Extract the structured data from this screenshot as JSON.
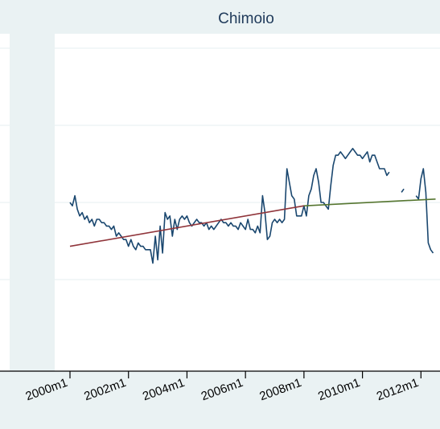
{
  "chart_data": {
    "type": "line",
    "title": "Chimoio",
    "xlabel": "",
    "ylabel": "",
    "x_ticks": [
      "2000m1",
      "2002m1",
      "2004m1",
      "2006m1",
      "2008m1",
      "2010m1",
      "2012m1"
    ],
    "xlim": [
      "2000m1",
      "2012m7"
    ],
    "ylim": [
      0,
      10
    ],
    "grid": true,
    "legend": "none",
    "colors": {
      "price": "#1a476f",
      "trend_pre": "#90353b",
      "trend_post": "#55752f",
      "background": "#eaf2f3",
      "plot_bg": "#ffffff",
      "grid": "#eaf2f3",
      "title": "#1f3a5a"
    },
    "series": [
      {
        "type": "line",
        "color": "#1a476f",
        "points": [
          [
            "2000m1",
            5.0
          ],
          [
            "2000m2",
            4.9
          ],
          [
            "2000m3",
            5.2
          ],
          [
            "2000m4",
            4.8
          ],
          [
            "2000m5",
            4.6
          ],
          [
            "2000m6",
            4.7
          ],
          [
            "2000m7",
            4.5
          ],
          [
            "2000m8",
            4.6
          ],
          [
            "2000m9",
            4.4
          ],
          [
            "2000m10",
            4.5
          ],
          [
            "2000m11",
            4.3
          ],
          [
            "2000m12",
            4.5
          ],
          [
            "2001m1",
            4.5
          ],
          [
            "2001m2",
            4.4
          ],
          [
            "2001m3",
            4.4
          ],
          [
            "2001m4",
            4.3
          ],
          [
            "2001m5",
            4.3
          ],
          [
            "2001m6",
            4.2
          ],
          [
            "2001m7",
            4.3
          ],
          [
            "2001m8",
            4.0
          ],
          [
            "2001m9",
            4.1
          ],
          [
            "2001m10",
            4.0
          ],
          [
            "2001m11",
            3.9
          ],
          [
            "2001m12",
            3.9
          ],
          [
            "2002m1",
            3.7
          ],
          [
            "2002m2",
            3.9
          ],
          [
            "2002m3",
            3.7
          ],
          [
            "2002m4",
            3.6
          ],
          [
            "2002m5",
            3.8
          ],
          [
            "2002m6",
            3.7
          ],
          [
            "2002m7",
            3.7
          ],
          [
            "2002m8",
            3.6
          ],
          [
            "2002m9",
            3.6
          ],
          [
            "2002m10",
            3.6
          ],
          [
            "2002m11",
            3.2
          ],
          [
            "2002m12",
            4.0
          ],
          [
            "2003m1",
            3.3
          ],
          [
            "2003m2",
            4.3
          ],
          [
            "2003m3",
            3.5
          ],
          [
            "2003m4",
            4.7
          ],
          [
            "2003m5",
            4.5
          ],
          [
            "2003m6",
            4.6
          ],
          [
            "2003m7",
            4.0
          ],
          [
            "2003m8",
            4.5
          ],
          [
            "2003m9",
            4.2
          ],
          [
            "2003m10",
            4.5
          ],
          [
            "2003m11",
            4.6
          ],
          [
            "2003m12",
            4.5
          ],
          [
            "2004m1",
            4.6
          ],
          [
            "2004m2",
            4.4
          ],
          [
            "2004m3",
            4.3
          ],
          [
            "2004m4",
            4.4
          ],
          [
            "2004m5",
            4.5
          ],
          [
            "2004m6",
            4.4
          ],
          [
            "2004m7",
            4.4
          ],
          [
            "2004m8",
            4.3
          ],
          [
            "2004m9",
            4.4
          ],
          [
            "2004m10",
            4.2
          ],
          [
            "2004m11",
            4.3
          ],
          [
            "2004m12",
            4.2
          ],
          [
            "2005m1",
            4.3
          ],
          [
            "2005m2",
            4.4
          ],
          [
            "2005m3",
            4.5
          ],
          [
            "2005m4",
            4.4
          ],
          [
            "2005m5",
            4.4
          ],
          [
            "2005m6",
            4.3
          ],
          [
            "2005m7",
            4.4
          ],
          [
            "2005m8",
            4.3
          ],
          [
            "2005m9",
            4.3
          ],
          [
            "2005m10",
            4.2
          ],
          [
            "2005m11",
            4.4
          ],
          [
            "2005m12",
            4.3
          ],
          [
            "2006m1",
            4.2
          ],
          [
            "2006m2",
            4.5
          ],
          [
            "2006m3",
            4.2
          ],
          [
            "2006m4",
            4.2
          ],
          [
            "2006m5",
            4.1
          ],
          [
            "2006m6",
            4.3
          ],
          [
            "2006m7",
            4.1
          ],
          [
            "2006m8",
            5.2
          ],
          [
            "2006m9",
            4.7
          ],
          [
            "2006m10",
            3.9
          ],
          [
            "2006m11",
            4.0
          ],
          [
            "2006m12",
            4.4
          ],
          [
            "2007m1",
            4.5
          ],
          [
            "2007m2",
            4.4
          ],
          [
            "2007m3",
            4.5
          ],
          [
            "2007m4",
            4.4
          ],
          [
            "2007m5",
            4.5
          ],
          [
            "2007m6",
            6.0
          ],
          [
            "2007m7",
            5.6
          ],
          [
            "2007m8",
            5.2
          ],
          [
            "2007m9",
            5.1
          ],
          [
            "2007m10",
            4.6
          ],
          [
            "2007m11",
            4.6
          ],
          [
            "2007m12",
            4.6
          ],
          [
            "2008m1",
            4.9
          ],
          [
            "2008m2",
            4.6
          ],
          [
            "2008m3",
            5.2
          ],
          [
            "2008m4",
            5.4
          ],
          [
            "2008m5",
            5.8
          ],
          [
            "2008m6",
            6.0
          ],
          [
            "2008m7",
            5.6
          ],
          [
            "2008m8",
            5.0
          ],
          [
            "2008m9",
            5.0
          ],
          [
            "2008m10",
            4.9
          ],
          [
            "2008m11",
            4.8
          ],
          [
            "2008m12",
            5.5
          ],
          [
            "2009m1",
            6.1
          ],
          [
            "2009m2",
            6.4
          ],
          [
            "2009m3",
            6.4
          ],
          [
            "2009m4",
            6.5
          ],
          [
            "2009m5",
            6.4
          ],
          [
            "2009m6",
            6.3
          ],
          [
            "2009m7",
            6.4
          ],
          [
            "2009m8",
            6.5
          ],
          [
            "2009m9",
            6.6
          ],
          [
            "2009m10",
            6.5
          ],
          [
            "2009m11",
            6.4
          ],
          [
            "2009m12",
            6.4
          ],
          [
            "2010m1",
            6.3
          ],
          [
            "2010m2",
            6.4
          ],
          [
            "2010m3",
            6.5
          ],
          [
            "2010m4",
            6.2
          ],
          [
            "2010m5",
            6.4
          ],
          [
            "2010m6",
            6.4
          ],
          [
            "2010m7",
            6.2
          ],
          [
            "2010m8",
            6.0
          ],
          [
            "2010m9",
            6.0
          ],
          [
            "2010m10",
            6.0
          ],
          [
            "2010m11",
            5.8
          ],
          [
            "2010m12",
            5.9
          ]
        ]
      },
      {
        "type": "line",
        "color": "#1a476f",
        "points": [
          [
            "2011m5",
            5.3
          ],
          [
            "2011m6",
            5.4
          ]
        ]
      },
      {
        "type": "line",
        "color": "#1a476f",
        "points": [
          [
            "2011m11",
            5.2
          ],
          [
            "2011m12",
            5.1
          ],
          [
            "2012m1",
            5.7
          ],
          [
            "2012m2",
            6.0
          ],
          [
            "2012m3",
            5.3
          ],
          [
            "2012m4",
            3.8
          ],
          [
            "2012m5",
            3.6
          ],
          [
            "2012m6",
            3.5
          ]
        ]
      },
      {
        "type": "line",
        "color": "#90353b",
        "points": [
          [
            "2000m1",
            3.7
          ],
          [
            "2008m1",
            4.9
          ]
        ]
      },
      {
        "type": "line",
        "color": "#55752f",
        "points": [
          [
            "2008m1",
            4.9
          ],
          [
            "2012m7",
            5.1
          ]
        ]
      }
    ]
  }
}
